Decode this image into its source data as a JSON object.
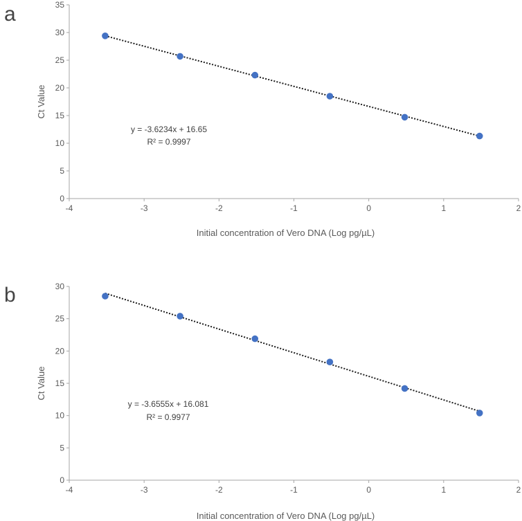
{
  "chart_data": [
    {
      "panel_label": "a",
      "type": "scatter",
      "xlabel": "Initial concentration of Vero DNA (Log pg/µL)",
      "ylabel": "Ct Value",
      "xlim": [
        -4,
        2
      ],
      "ylim": [
        0,
        35
      ],
      "x_ticks": [
        -4,
        -3,
        -2,
        -1,
        0,
        1,
        2
      ],
      "y_ticks": [
        0,
        5,
        10,
        15,
        20,
        25,
        30,
        35
      ],
      "grid": false,
      "points": [
        {
          "x": -3.52,
          "y": 29.4
        },
        {
          "x": -2.52,
          "y": 25.7
        },
        {
          "x": -1.52,
          "y": 22.3
        },
        {
          "x": -0.52,
          "y": 18.5
        },
        {
          "x": 0.48,
          "y": 14.7
        },
        {
          "x": 1.48,
          "y": 11.3
        }
      ],
      "trendline": {
        "slope": -3.6234,
        "intercept": 16.65
      },
      "equation": "y = -3.6234x + 16.65",
      "r2": "R² = 0.9997",
      "colors": {
        "point": "#4472c4",
        "trendline": "#1a1a1a",
        "axis": "#a6a6a6"
      }
    },
    {
      "panel_label": "b",
      "type": "scatter",
      "xlabel": "Initial concentration of Vero DNA (Log pg/µL)",
      "ylabel": "Ct Value",
      "xlim": [
        -4,
        2
      ],
      "ylim": [
        0,
        30
      ],
      "x_ticks": [
        -4,
        -3,
        -2,
        -1,
        0,
        1,
        2
      ],
      "y_ticks": [
        0,
        5,
        10,
        15,
        20,
        25,
        30
      ],
      "grid": false,
      "points": [
        {
          "x": -3.52,
          "y": 28.5
        },
        {
          "x": -2.52,
          "y": 25.4
        },
        {
          "x": -1.52,
          "y": 21.9
        },
        {
          "x": -0.52,
          "y": 18.3
        },
        {
          "x": 0.48,
          "y": 14.2
        },
        {
          "x": 1.48,
          "y": 10.4
        }
      ],
      "trendline": {
        "slope": -3.6555,
        "intercept": 16.081
      },
      "equation": "y = -3.6555x + 16.081",
      "r2": "R² = 0.9977",
      "colors": {
        "point": "#4472c4",
        "trendline": "#1a1a1a",
        "axis": "#a6a6a6"
      }
    }
  ]
}
